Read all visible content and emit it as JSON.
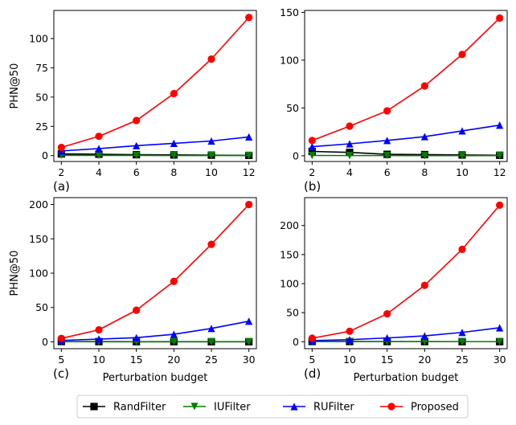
{
  "chart_data": [
    {
      "type": "line",
      "panel_label": "(a)",
      "ylabel": "PHN@50",
      "xlabel": "",
      "x": [
        2,
        4,
        6,
        8,
        10,
        12
      ],
      "xticks": [
        2,
        4,
        6,
        8,
        10,
        12
      ],
      "yticks": [
        0,
        25,
        50,
        75,
        100
      ],
      "xlim": [
        1.6,
        12.4
      ],
      "ylim": [
        -5,
        124
      ],
      "series": [
        {
          "name": "RandFilter",
          "values": [
            1.5,
            1.2,
            0.8,
            0.6,
            0.4,
            0.2
          ]
        },
        {
          "name": "IUFilter",
          "values": [
            0.3,
            0.2,
            0.2,
            0.1,
            0.1,
            0.1
          ]
        },
        {
          "name": "RUFilter",
          "values": [
            4,
            6,
            8.5,
            10.5,
            12.5,
            16
          ]
        },
        {
          "name": "Proposed",
          "values": [
            7,
            16.5,
            30,
            53,
            82.5,
            118
          ]
        }
      ]
    },
    {
      "type": "line",
      "panel_label": "(b)",
      "ylabel": "",
      "xlabel": "",
      "x": [
        2,
        4,
        6,
        8,
        10,
        12
      ],
      "xticks": [
        2,
        4,
        6,
        8,
        10,
        12
      ],
      "yticks": [
        0,
        50,
        100,
        150
      ],
      "xlim": [
        1.6,
        12.4
      ],
      "ylim": [
        -6,
        152
      ],
      "series": [
        {
          "name": "RandFilter",
          "values": [
            4.5,
            3.5,
            1.5,
            1.2,
            0.8,
            0.5
          ]
        },
        {
          "name": "IUFilter",
          "values": [
            0.3,
            0.2,
            0.2,
            0.1,
            0.1,
            0.1
          ]
        },
        {
          "name": "RUFilter",
          "values": [
            9.5,
            12.5,
            16,
            20,
            26,
            32
          ]
        },
        {
          "name": "Proposed",
          "values": [
            16,
            31,
            47,
            73,
            106,
            144
          ]
        }
      ]
    },
    {
      "type": "line",
      "panel_label": "(c)",
      "ylabel": "PHN@50",
      "xlabel": "Perturbation budget",
      "x": [
        5,
        10,
        15,
        20,
        25,
        30
      ],
      "xticks": [
        5,
        10,
        15,
        20,
        25,
        30
      ],
      "yticks": [
        0,
        50,
        100,
        150,
        200
      ],
      "xlim": [
        4,
        31
      ],
      "ylim": [
        -10,
        210
      ],
      "series": [
        {
          "name": "RandFilter",
          "values": [
            0.4,
            0.3,
            0.2,
            0.2,
            0.1,
            0.1
          ]
        },
        {
          "name": "IUFilter",
          "values": [
            0.2,
            0.1,
            0.1,
            0.1,
            0.1,
            0.1
          ]
        },
        {
          "name": "RUFilter",
          "values": [
            2,
            4,
            6,
            11,
            19.5,
            30
          ]
        },
        {
          "name": "Proposed",
          "values": [
            5,
            17.5,
            46,
            88,
            142,
            200
          ]
        }
      ]
    },
    {
      "type": "line",
      "panel_label": "(d)",
      "ylabel": "",
      "xlabel": "Perturbation budget",
      "x": [
        5,
        10,
        15,
        20,
        25,
        30
      ],
      "xticks": [
        5,
        10,
        15,
        20,
        25,
        30
      ],
      "yticks": [
        0,
        50,
        100,
        150,
        200
      ],
      "xlim": [
        4,
        31
      ],
      "ylim": [
        -12,
        248
      ],
      "series": [
        {
          "name": "RandFilter",
          "values": [
            0.4,
            0.3,
            0.2,
            0.2,
            0.1,
            0.1
          ]
        },
        {
          "name": "IUFilter",
          "values": [
            0.2,
            0.1,
            0.1,
            0.1,
            0.1,
            0.1
          ]
        },
        {
          "name": "RUFilter",
          "values": [
            2,
            3.5,
            6.5,
            10,
            16,
            24
          ]
        },
        {
          "name": "Proposed",
          "values": [
            6,
            18,
            48,
            97,
            159,
            235
          ]
        }
      ]
    }
  ],
  "legend": {
    "placement": "bottom-center",
    "items": [
      {
        "name": "RandFilter",
        "color": "#000000",
        "marker": "square"
      },
      {
        "name": "IUFilter",
        "color": "#008000",
        "marker": "triangle-down"
      },
      {
        "name": "RUFilter",
        "color": "#0000ff",
        "marker": "triangle-up"
      },
      {
        "name": "Proposed",
        "color": "#ff0000",
        "marker": "circle"
      }
    ]
  }
}
